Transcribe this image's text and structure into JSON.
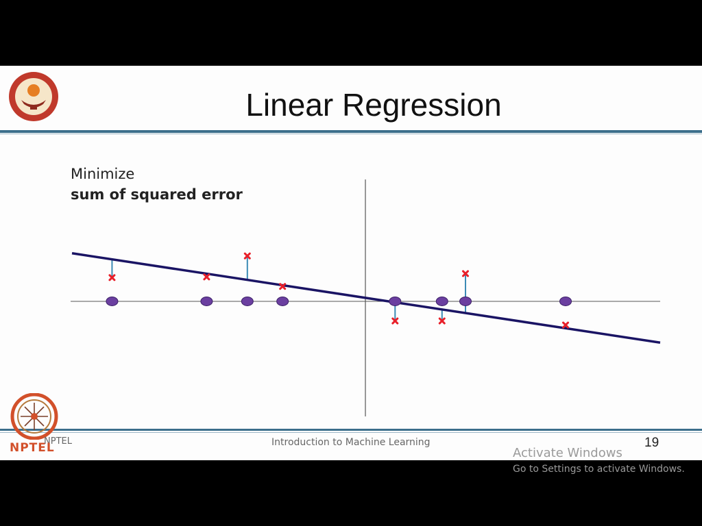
{
  "slide": {
    "title": "Linear Regression",
    "text_line1": "Minimize",
    "text_line2": "sum of squared error",
    "footer_left_small": "NPTEL",
    "footer_left_logo_text": "NPTEL",
    "footer_center": "Introduction to Machine Learning",
    "page_number": "19",
    "logos": [
      "iit-madras-seal",
      "nptel-logo"
    ]
  },
  "os_overlay": {
    "line1": "Activate Windows",
    "line2": "Go to Settings to activate Windows."
  },
  "chart_data": {
    "type": "scatter",
    "title": "",
    "xlabel": "",
    "ylabel": "",
    "xlim": [
      -4.3,
      4.3
    ],
    "ylim": [
      -1.7,
      1.8
    ],
    "grid": false,
    "line_start": [
      -4.25,
      0.71
    ],
    "line_end": [
      4.27,
      -0.61
    ],
    "points_x": [
      -3.67,
      -2.3,
      -1.71,
      -1.2,
      0.43,
      1.11,
      1.45,
      2.9
    ],
    "points_y": [
      0.35,
      0.36,
      0.67,
      0.22,
      -0.29,
      -0.29,
      0.41,
      -0.35
    ],
    "colors": {
      "line": "#1a1464",
      "axes": "#555555",
      "point_fill": "#6b3fa0",
      "point_stroke": "#3a1f66",
      "target": "#e8202a",
      "residual": "#3b8bb5"
    }
  }
}
